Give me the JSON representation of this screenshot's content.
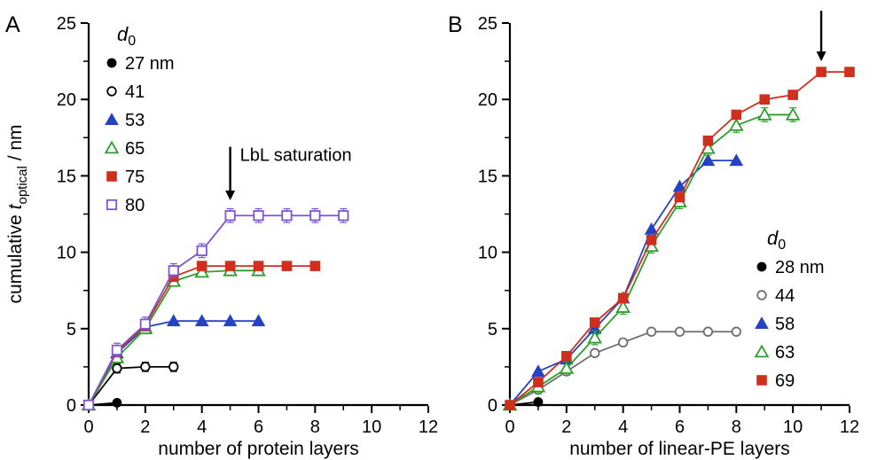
{
  "figure": {
    "background": "#ffffff"
  },
  "chart_data": [
    {
      "type": "line",
      "panel_label": "A",
      "xlabel": "number of protein layers",
      "ylabel_rich": [
        {
          "text": "cumulative ",
          "style": "normal"
        },
        {
          "text": "t",
          "style": "italic"
        },
        {
          "text": "optical",
          "style": "sub"
        },
        {
          "text": " / nm",
          "style": "normal"
        }
      ],
      "xlim": [
        0,
        12
      ],
      "ylim": [
        0,
        25
      ],
      "xticks": [
        0,
        2,
        4,
        6,
        8,
        10,
        12
      ],
      "yticks": [
        0,
        5,
        10,
        15,
        20,
        25
      ],
      "legend": {
        "title_italic": "d",
        "title_sub": "0",
        "position": "upper-left"
      },
      "annotation": {
        "text": "LbL saturation",
        "x": 5,
        "y_tail": 16.9,
        "y_tip": 13.4
      },
      "series": [
        {
          "name": "27 nm",
          "marker": "circle",
          "fill": "filled",
          "color": "#000000",
          "x": [
            0,
            1
          ],
          "y": [
            0,
            0.15
          ]
        },
        {
          "name": "41",
          "marker": "circle",
          "fill": "open",
          "color": "#000000",
          "yerr": 0.3,
          "x": [
            0,
            1,
            2,
            3
          ],
          "y": [
            0,
            2.4,
            2.5,
            2.5
          ]
        },
        {
          "name": "53",
          "marker": "triangle",
          "fill": "filled",
          "color": "#2343c3",
          "x": [
            0,
            1,
            2,
            3,
            4,
            5,
            6
          ],
          "y": [
            0,
            3.4,
            5.1,
            5.5,
            5.5,
            5.5,
            5.5
          ]
        },
        {
          "name": "65",
          "marker": "triangle",
          "fill": "open",
          "color": "#2f9e2f",
          "yerr": 0.3,
          "x": [
            0,
            1,
            2,
            3,
            4,
            5,
            6
          ],
          "y": [
            0,
            3.1,
            5.0,
            8.1,
            8.7,
            8.8,
            8.8
          ]
        },
        {
          "name": "75",
          "marker": "square",
          "fill": "filled",
          "color": "#cf2f1c",
          "x": [
            0,
            1,
            2,
            3,
            4,
            5,
            6,
            7,
            8
          ],
          "y": [
            0,
            3.5,
            5.2,
            8.4,
            9.1,
            9.1,
            9.1,
            9.1,
            9.1
          ]
        },
        {
          "name": "80",
          "marker": "square",
          "fill": "open",
          "color": "#7d55cf",
          "yerr": 0.45,
          "x": [
            0,
            1,
            2,
            3,
            4,
            5,
            6,
            7,
            8,
            9
          ],
          "y": [
            0,
            3.6,
            5.3,
            8.8,
            10.1,
            12.4,
            12.4,
            12.4,
            12.4,
            12.4
          ]
        }
      ]
    },
    {
      "type": "line",
      "panel_label": "B",
      "xlabel": "number of linear-PE layers",
      "xlim": [
        0,
        12
      ],
      "ylim": [
        0,
        25
      ],
      "xticks": [
        0,
        2,
        4,
        6,
        8,
        10,
        12
      ],
      "yticks": [
        0,
        5,
        10,
        15,
        20,
        25
      ],
      "legend": {
        "title_italic": "d",
        "title_sub": "0",
        "position": "right-lower"
      },
      "annotation": {
        "text": "",
        "x": 11,
        "y_tail": 25.8,
        "y_tip": 22.5
      },
      "series": [
        {
          "name": "28 nm",
          "marker": "circle",
          "fill": "filled",
          "color": "#000000",
          "x": [
            0,
            1
          ],
          "y": [
            0,
            0.2
          ]
        },
        {
          "name": "44",
          "marker": "circle",
          "fill": "open",
          "color": "#6e6e6e",
          "yerr": 0.2,
          "x": [
            0,
            1,
            2,
            3,
            4,
            5,
            6,
            7,
            8
          ],
          "y": [
            0,
            1.0,
            2.2,
            3.4,
            4.1,
            4.8,
            4.8,
            4.8,
            4.8
          ]
        },
        {
          "name": "58",
          "marker": "triangle",
          "fill": "filled",
          "color": "#2343c3",
          "x": [
            0,
            1,
            2,
            3,
            4,
            5,
            6,
            7,
            8
          ],
          "y": [
            0,
            2.2,
            3.0,
            5.0,
            7.0,
            11.5,
            14.3,
            16.0,
            16.0
          ]
        },
        {
          "name": "63",
          "marker": "triangle",
          "fill": "open",
          "color": "#2f9e2f",
          "yerr": 0.45,
          "x": [
            0,
            1,
            2,
            3,
            4,
            5,
            6,
            7,
            8,
            9,
            10
          ],
          "y": [
            0,
            1.2,
            2.4,
            4.4,
            6.4,
            10.4,
            13.3,
            16.8,
            18.3,
            19.0,
            19.0
          ]
        },
        {
          "name": "69",
          "marker": "square",
          "fill": "filled",
          "color": "#cf2f1c",
          "yerr": 0.25,
          "x": [
            0,
            1,
            2,
            3,
            4,
            5,
            6,
            7,
            8,
            9,
            10,
            11,
            12
          ],
          "y": [
            0,
            1.5,
            3.2,
            5.4,
            7.0,
            10.8,
            13.6,
            17.3,
            19.0,
            20.0,
            20.3,
            21.8,
            21.8
          ]
        }
      ]
    }
  ]
}
